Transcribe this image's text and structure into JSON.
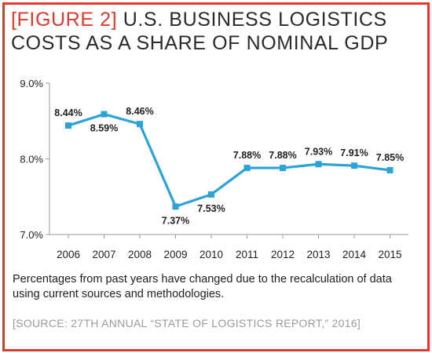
{
  "figure": {
    "tag": "[FIGURE 2]",
    "title_line1": "U.S. BUSINESS LOGISTICS",
    "title_line2": "COSTS AS A SHARE OF NOMINAL GDP",
    "note": "Percentages from past years have changed due to the recalculation of data using current sources and methodologies.",
    "source": "[SOURCE: 27TH ANNUAL “STATE OF LOGISTICS REPORT,” 2016]"
  },
  "colors": {
    "frame": "#e03a2f",
    "tag": "#e03a2f",
    "line": "#2ba3d6",
    "axis": "#999999",
    "text": "#1f1f1f",
    "source": "#9a9a9a"
  },
  "chart_data": {
    "type": "line",
    "title": "U.S. BUSINESS LOGISTICS COSTS AS A SHARE OF NOMINAL GDP",
    "xlabel": "",
    "ylabel": "",
    "categories": [
      "2006",
      "2007",
      "2008",
      "2009",
      "2010",
      "2011",
      "2012",
      "2013",
      "2014",
      "2015"
    ],
    "values": [
      8.44,
      8.59,
      8.46,
      7.37,
      7.53,
      7.88,
      7.88,
      7.93,
      7.91,
      7.85
    ],
    "labels": [
      "8.44%",
      "8.59%",
      "8.46%",
      "7.37%",
      "7.53%",
      "7.88%",
      "7.88%",
      "7.93%",
      "7.91%",
      "7.85%"
    ],
    "label_positions": [
      "above",
      "below",
      "above",
      "below",
      "below",
      "above",
      "above",
      "above",
      "above",
      "above"
    ],
    "ylim": [
      7.0,
      9.0
    ],
    "yticks": [
      7.0,
      8.0,
      9.0
    ],
    "ytick_labels": [
      "7.0%",
      "8.0%",
      "9.0%"
    ],
    "grid": false,
    "legend": "none"
  }
}
